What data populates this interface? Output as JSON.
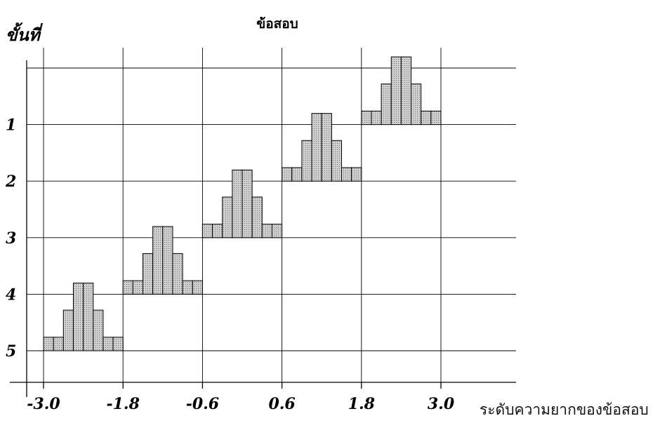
{
  "chart_data": {
    "type": "bar",
    "title": "ข้อสอบ",
    "ylabel": "ขั้นที่",
    "xlabel": "ระดับความยากของข้อสอบ",
    "x_ticks": [
      "-3.0",
      "-1.8",
      "-0.6",
      "0.6",
      "1.8",
      "3.0"
    ],
    "y_ticks": [
      "1",
      "2",
      "3",
      "4",
      "5"
    ],
    "grid": true,
    "bar_profile": [
      1,
      1,
      3,
      5,
      5,
      3,
      1,
      1
    ],
    "series": [
      {
        "stage": 5,
        "x_range": [
          -3.0,
          -1.8
        ]
      },
      {
        "stage": 4,
        "x_range": [
          -1.8,
          -0.6
        ]
      },
      {
        "stage": 3,
        "x_range": [
          -0.6,
          0.6
        ]
      },
      {
        "stage": 2,
        "x_range": [
          0.6,
          1.8
        ]
      },
      {
        "stage": 1,
        "x_range": [
          1.8,
          3.0
        ]
      }
    ]
  }
}
